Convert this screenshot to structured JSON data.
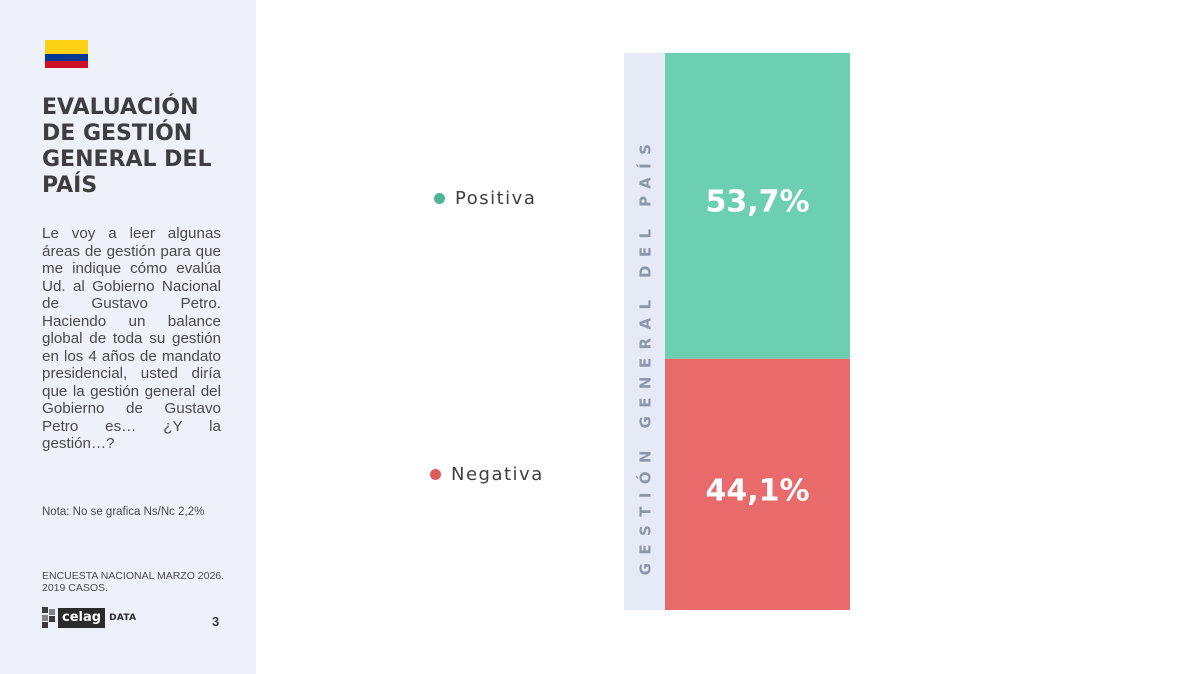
{
  "colors": {
    "positive": "#6ccfb2",
    "negative": "#e96a6b",
    "positive_dot": "#50b396",
    "negative_dot": "#e05a5c",
    "axis_band": "#e6eaf6",
    "sidebar_bg": "#eef1f9",
    "flag": [
      "#fcd116",
      "#003893",
      "#ce1126"
    ]
  },
  "sidebar": {
    "title": "EVALUACIÓN DE GESTIÓN GENERAL DEL PAÍS",
    "question": "Le voy a leer algunas áreas de gestión para que me indique cómo evalúa Ud. al Gobierno Nacional de Gustavo Petro. Haciendo un balance global de toda su gestión en los 4 años de mandato presidencial, usted diría que la gestión general del Gobierno de Gustavo Petro es… ¿Y la gestión…?",
    "note": "Nota: No se grafica Ns/Nc 2,2%",
    "survey": "ENCUESTA NACIONAL MARZO 2026. 2019 CASOS.",
    "logo_word": "celag",
    "logo_suffix": "DATA",
    "page_number": "3"
  },
  "chart_data": {
    "type": "bar",
    "stacked": true,
    "categories": [
      "GESTIÓN GENERAL DEL PAÍS"
    ],
    "series": [
      {
        "name": "Positiva",
        "values": [
          53.7
        ],
        "label": "53,7%"
      },
      {
        "name": "Negativa",
        "values": [
          44.1
        ],
        "label": "44,1%"
      }
    ],
    "ylim": [
      0,
      97.8
    ],
    "legend": "left",
    "grid": false
  }
}
